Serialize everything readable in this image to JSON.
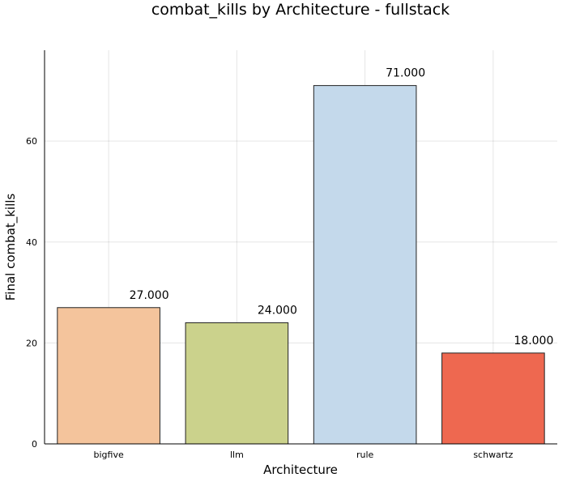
{
  "chart_data": {
    "type": "bar",
    "title": "combat_kills by Architecture - fullstack",
    "xlabel": "Architecture",
    "ylabel": "Final combat_kills",
    "categories": [
      "bigfive",
      "llm",
      "rule",
      "schwartz"
    ],
    "values": [
      27,
      24,
      71,
      18
    ],
    "value_labels": [
      "27.000",
      "24.000",
      "71.000",
      "18.000"
    ],
    "colors": [
      "#f4c49c",
      "#cbd28c",
      "#c4d9eb",
      "#ee6850"
    ],
    "ylim": [
      0,
      78
    ],
    "yticks": [
      0,
      20,
      40,
      60
    ],
    "grid": true,
    "legend": "none"
  }
}
